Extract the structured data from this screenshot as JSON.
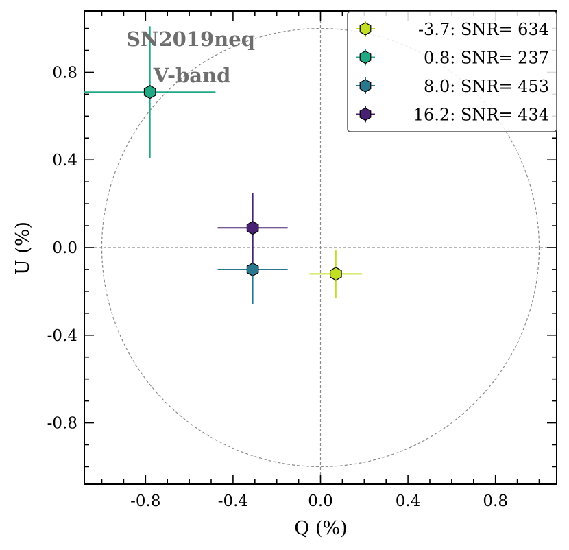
{
  "chart_data": {
    "type": "scatter",
    "xlabel": "Q (%)",
    "ylabel": "U (%)",
    "xlim": [
      -1.08,
      1.08
    ],
    "ylim": [
      -1.08,
      1.08
    ],
    "xticks": [
      -0.8,
      -0.4,
      0.0,
      0.4,
      0.8
    ],
    "xtick_labels": [
      "-0.8",
      "-0.4",
      "0.0",
      "0.4",
      "0.8"
    ],
    "yticks": [
      0.8,
      0.4,
      0.0,
      -0.4,
      -0.8
    ],
    "ytick_labels": [
      "0.8",
      "0.4",
      "0.0",
      "-0.4",
      "-0.8"
    ],
    "minor_tick_step": 0.1,
    "reference_circle_radius": 1.0,
    "annotations": [
      "SN2019neq",
      "V-band"
    ],
    "legend_position": "top-right",
    "series": [
      {
        "name": "-3.7: SNR= 634",
        "q": 0.07,
        "u": -0.12,
        "q_err": 0.12,
        "u_err": 0.11,
        "color": "#c2df23"
      },
      {
        "name": " 0.8: SNR= 237",
        "q": -0.78,
        "u": 0.71,
        "q_err": 0.3,
        "u_err": 0.3,
        "color": "#22a884"
      },
      {
        "name": " 8.0: SNR= 453",
        "q": -0.31,
        "u": -0.1,
        "q_err": 0.16,
        "u_err": 0.16,
        "color": "#2a788e"
      },
      {
        "name": "16.2: SNR= 434",
        "q": -0.31,
        "u": 0.09,
        "q_err": 0.16,
        "u_err": 0.16,
        "color": "#482173"
      }
    ]
  }
}
